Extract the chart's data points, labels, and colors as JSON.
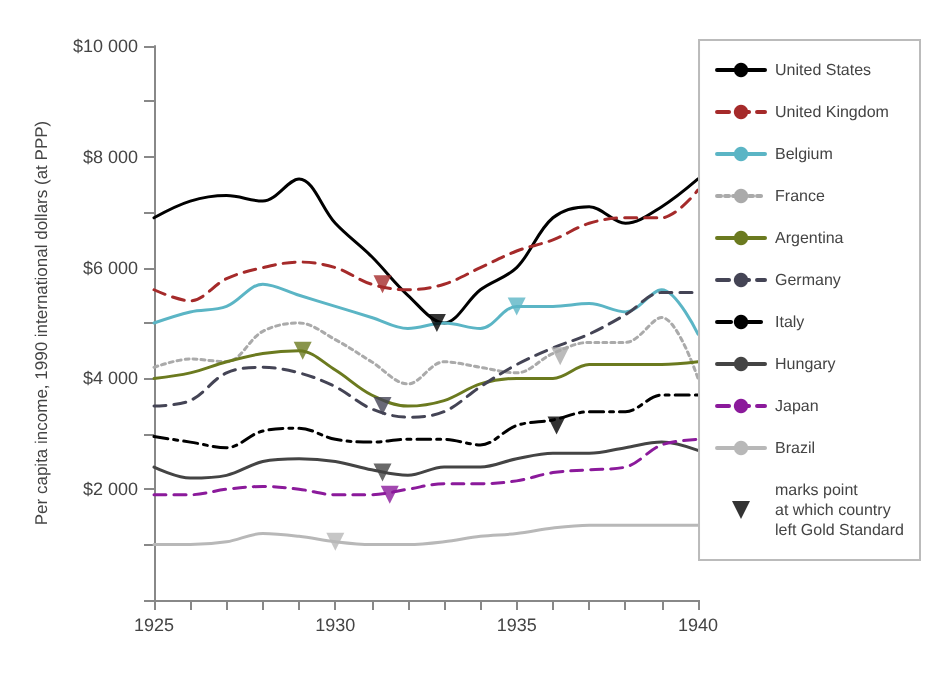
{
  "chart_data": {
    "type": "line",
    "ylabel": "Per capita income, 1990 international dollars (at PPP)",
    "x": [
      1925,
      1926,
      1927,
      1928,
      1929,
      1930,
      1931,
      1932,
      1933,
      1934,
      1935,
      1936,
      1937,
      1938,
      1939,
      1940
    ],
    "xlim": [
      1925,
      1940
    ],
    "xticks": [
      1925,
      {
        "value": 1926,
        "label": null
      },
      {
        "value": 1927,
        "label": null
      },
      {
        "value": 1928,
        "label": null
      },
      {
        "value": 1929,
        "label": null
      },
      1930,
      {
        "value": 1931,
        "label": null
      },
      {
        "value": 1932,
        "label": null
      },
      {
        "value": 1933,
        "label": null
      },
      {
        "value": 1934,
        "label": null
      },
      1935,
      {
        "value": 1936,
        "label": null
      },
      {
        "value": 1937,
        "label": null
      },
      {
        "value": 1938,
        "label": null
      },
      {
        "value": 1939,
        "label": null
      },
      1940
    ],
    "ylim": [
      0,
      10000
    ],
    "yticks": [
      {
        "value": 0,
        "label": null
      },
      {
        "value": 1000,
        "label": null
      },
      {
        "value": 2000,
        "label": "$2 000"
      },
      {
        "value": 3000,
        "label": null
      },
      {
        "value": 4000,
        "label": "$4 000"
      },
      {
        "value": 5000,
        "label": null
      },
      {
        "value": 6000,
        "label": "$6 000"
      },
      {
        "value": 7000,
        "label": null
      },
      {
        "value": 8000,
        "label": "$8 000"
      },
      {
        "value": 9000,
        "label": null
      },
      {
        "value": 10000,
        "label": "$10 000"
      }
    ],
    "grid": false,
    "legend": "right",
    "marker": "none",
    "series": [
      {
        "name": "United States",
        "color": "#000000",
        "line_style": "solid",
        "values": [
          6900,
          7200,
          7300,
          7200,
          7600,
          6800,
          6200,
          5500,
          5000,
          5600,
          6000,
          6900,
          7100,
          6800,
          7100,
          7600
        ]
      },
      {
        "name": "United Kingdom",
        "color": "#a52a2a",
        "line_style": "dashed",
        "values": [
          5600,
          5400,
          5800,
          6000,
          6100,
          6000,
          5700,
          5600,
          5700,
          6000,
          6300,
          6500,
          6800,
          6900,
          6900,
          7400
        ]
      },
      {
        "name": "Belgium",
        "color": "#5bb5c5",
        "line_style": "solid",
        "values": [
          5000,
          5200,
          5300,
          5700,
          5500,
          5300,
          5100,
          4900,
          5000,
          4900,
          5300,
          5300,
          5350,
          5200,
          5600,
          4800
        ]
      },
      {
        "name": "France",
        "color": "#aaaaaa",
        "line_style": "dotted",
        "values": [
          4200,
          4350,
          4300,
          4850,
          5000,
          4700,
          4300,
          3900,
          4300,
          4200,
          4100,
          4450,
          4650,
          4650,
          5100,
          4000
        ]
      },
      {
        "name": "Argentina",
        "color": "#6b7a1f",
        "line_style": "solid",
        "values": [
          4000,
          4100,
          4300,
          4450,
          4500,
          4150,
          3700,
          3500,
          3600,
          3900,
          4000,
          4000,
          4250,
          4250,
          4250,
          4300
        ]
      },
      {
        "name": "Germany",
        "color": "#444455",
        "line_style": "dashed",
        "values": [
          3500,
          3600,
          4100,
          4200,
          4100,
          3850,
          3450,
          3300,
          3400,
          3850,
          4250,
          4550,
          4800,
          5150,
          5550,
          5550
        ]
      },
      {
        "name": "Italy",
        "color": "#000000",
        "line_style": "dashdot",
        "values": [
          2950,
          2850,
          2750,
          3050,
          3100,
          2900,
          2850,
          2900,
          2900,
          2800,
          3150,
          3250,
          3400,
          3400,
          3700,
          3700
        ]
      },
      {
        "name": "Hungary",
        "color": "#444444",
        "line_style": "solid",
        "values": [
          2400,
          2200,
          2250,
          2500,
          2550,
          2500,
          2350,
          2250,
          2400,
          2400,
          2550,
          2650,
          2650,
          2750,
          2850,
          2700
        ]
      },
      {
        "name": "Japan",
        "color": "#8b1a9b",
        "line_style": "dashed",
        "values": [
          1900,
          1900,
          2000,
          2050,
          2000,
          1900,
          1900,
          2000,
          2100,
          2100,
          2150,
          2300,
          2350,
          2400,
          2800,
          2900
        ]
      },
      {
        "name": "Brazil",
        "color": "#b8b8b8",
        "line_style": "solid",
        "values": [
          1000,
          1000,
          1050,
          1200,
          1150,
          1050,
          1000,
          1000,
          1050,
          1150,
          1200,
          1300,
          1350,
          1350,
          1350,
          1350
        ]
      },
      {
        "name": "marks point\nat which country\nleft Gold Standard",
        "type": "scatter",
        "marker": "triangle",
        "color": "#000000",
        "x": [
          1932.8,
          1931.3,
          1935,
          1936.2,
          1929.1,
          1931.3,
          1936.1,
          1931.3,
          1931.5,
          1930
        ],
        "values": [
          5000,
          5700,
          5300,
          4400,
          4500,
          3500,
          3150,
          2300,
          1900,
          1050
        ],
        "colors": [
          "#000000",
          "#a52a2a",
          "#5bb5c5",
          "#aaaaaa",
          "#6b7a1f",
          "#444455",
          "#000000",
          "#444444",
          "#8b1a9b",
          "#b8b8b8"
        ]
      }
    ]
  }
}
